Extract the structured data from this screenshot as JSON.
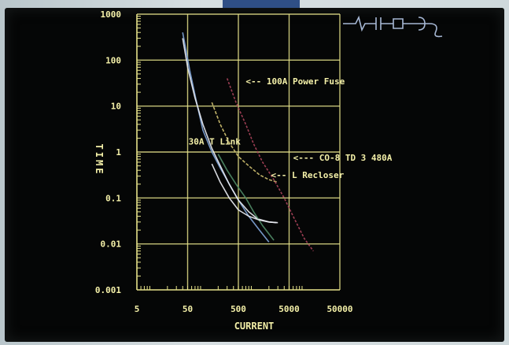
{
  "chart_data": {
    "type": "line",
    "xscale": "log",
    "yscale": "log",
    "xlabel": "CURRENT",
    "ylabel": "TIME",
    "xlim": [
      5,
      50000
    ],
    "ylim": [
      0.001,
      1000
    ],
    "grid": true,
    "xticks": [
      "5",
      "50",
      "500",
      "5000",
      "50000"
    ],
    "yticks": [
      "1000",
      "100",
      "10",
      "1",
      "0.1",
      "0.01",
      "0.001"
    ],
    "colors": {
      "grid": "#e6e28a",
      "axis": "#e6e28a",
      "text": "#f4f0a8",
      "blue": "#7ea3d6",
      "white": "#e9ecf2",
      "yellow": "#cfc070",
      "pink": "#a9435a",
      "green": "#4f8a66",
      "schematic": "#a6b7d4"
    },
    "series": [
      {
        "color": "blue",
        "x": [
          40,
          55,
          75,
          100,
          150,
          220,
          330,
          500,
          800,
          1300,
          2000
        ],
        "y": [
          400,
          60,
          12,
          3,
          1,
          0.45,
          0.2,
          0.09,
          0.04,
          0.02,
          0.011
        ]
      },
      {
        "color": "white",
        "x": [
          40,
          50,
          70,
          100,
          150,
          220,
          330,
          500,
          800,
          1200,
          2000,
          3000
        ],
        "y": [
          300,
          70,
          15,
          4,
          1.2,
          0.5,
          0.2,
          0.09,
          0.05,
          0.035,
          0.03,
          0.029
        ]
      },
      {
        "color": "yellow",
        "x": [
          150,
          220,
          330,
          500,
          800,
          1300,
          2000,
          3000
        ],
        "y": [
          12,
          4,
          1.6,
          0.8,
          0.5,
          0.32,
          0.25,
          0.22
        ]
      },
      {
        "color": "pink",
        "x": [
          300,
          450,
          700,
          1000,
          1500,
          2500,
          4000,
          6000,
          10000,
          15000
        ],
        "y": [
          40,
          12,
          4,
          1.5,
          0.6,
          0.25,
          0.1,
          0.04,
          0.013,
          0.007
        ]
      },
      {
        "color": "green",
        "x": [
          200,
          300,
          450,
          700,
          1000,
          1500,
          2500
        ],
        "y": [
          0.9,
          0.4,
          0.2,
          0.1,
          0.05,
          0.025,
          0.012
        ]
      },
      {
        "color": "white",
        "x": [
          150,
          220,
          330,
          500,
          800,
          1300,
          2000,
          2800
        ],
        "y": [
          0.55,
          0.22,
          0.1,
          0.055,
          0.04,
          0.033,
          0.03,
          0.029
        ]
      }
    ],
    "annotations": [
      {
        "text": "<-- 100A Power Fuse",
        "x": 700,
        "y": 30
      },
      {
        "text": "30A T Link",
        "x": 52,
        "y": 1.45
      },
      {
        "text": "<--- CO-8 TD 3 480A",
        "x": 6000,
        "y": 0.65
      },
      {
        "text": "<-- L Recloser",
        "x": 2200,
        "y": 0.27
      }
    ]
  }
}
